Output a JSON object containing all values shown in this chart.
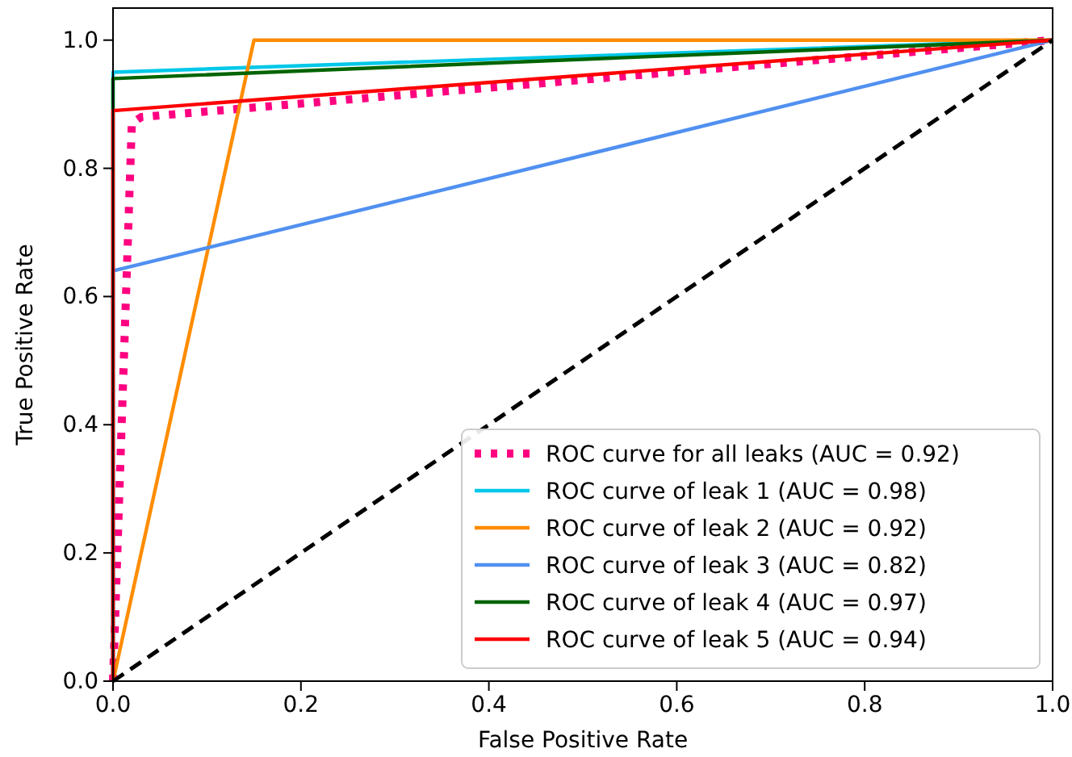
{
  "chart_data": {
    "type": "line",
    "xlabel": "False Positive Rate",
    "ylabel": "True Positive Rate",
    "xlim": [
      0,
      1
    ],
    "ylim": [
      0,
      1.05
    ],
    "xticks": [
      {
        "value": 0,
        "label": "0.0"
      },
      {
        "value": 0.2,
        "label": "0.2"
      },
      {
        "value": 0.4,
        "label": "0.4"
      },
      {
        "value": 0.6,
        "label": "0.6"
      },
      {
        "value": 0.8,
        "label": "0.8"
      },
      {
        "value": 1,
        "label": "1.0"
      }
    ],
    "yticks": [
      {
        "value": 0,
        "label": "0.0"
      },
      {
        "value": 0.2,
        "label": "0.2"
      },
      {
        "value": 0.4,
        "label": "0.4"
      },
      {
        "value": 0.6,
        "label": "0.6"
      },
      {
        "value": 0.8,
        "label": "0.8"
      },
      {
        "value": 1,
        "label": "1.0"
      }
    ],
    "grid": false,
    "legend": "bottom right",
    "marker": "none",
    "series": [
      {
        "name": "ROC curve for all leaks (AUC = 0.92)",
        "color": "#ff0080",
        "line_style": "dotted",
        "x": [
          0,
          0.02,
          0.03,
          1
        ],
        "values": [
          0,
          0.87,
          0.88,
          1
        ]
      },
      {
        "name": "ROC curve of leak 1 (AUC = 0.98)",
        "color": "#00c8e8",
        "line_style": "solid",
        "x": [
          0,
          0,
          1
        ],
        "values": [
          0,
          0.95,
          1
        ]
      },
      {
        "name": "ROC curve of leak 2 (AUC = 0.92)",
        "color": "#ff8c00",
        "line_style": "solid",
        "x": [
          0,
          0.15,
          1
        ],
        "values": [
          0,
          1,
          1
        ]
      },
      {
        "name": "ROC curve of leak 3 (AUC = 0.82)",
        "color": "#5090f0",
        "line_style": "solid",
        "x": [
          0,
          0,
          1
        ],
        "values": [
          0,
          0.64,
          1
        ]
      },
      {
        "name": "ROC curve of leak 4 (AUC = 0.97)",
        "color": "#006400",
        "line_style": "solid",
        "x": [
          0,
          0,
          1
        ],
        "values": [
          0,
          0.94,
          1
        ]
      },
      {
        "name": "ROC curve of leak 5 (AUC = 0.94)",
        "color": "#ff0000",
        "line_style": "solid",
        "x": [
          0,
          0,
          1
        ],
        "values": [
          0,
          0.89,
          1
        ]
      },
      {
        "color": "#000000",
        "line_style": "dashed",
        "x": [
          0,
          1
        ],
        "values": [
          0,
          1
        ]
      }
    ]
  }
}
